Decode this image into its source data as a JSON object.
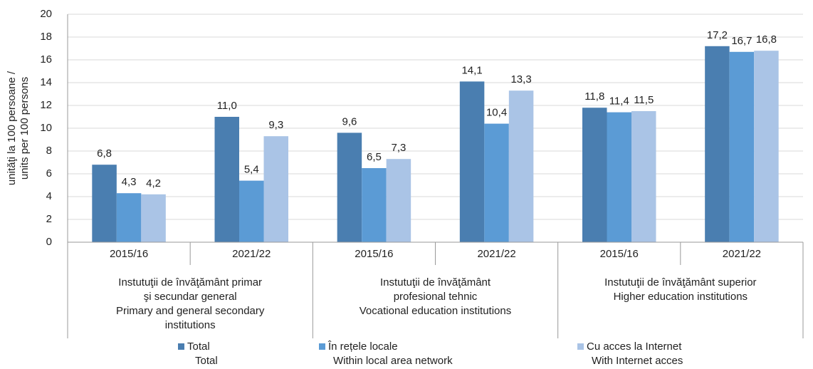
{
  "chart_data": {
    "type": "bar",
    "ylabel": [
      "unităţi la 100 persoane /",
      "units per 100 persons"
    ],
    "categories": [
      "2015/16",
      "2021/22",
      "2015/16",
      "2021/22",
      "2015/16",
      "2021/22"
    ],
    "groups": [
      {
        "lines": [
          "Instutuţii de învăţământ primar",
          "şi secundar general",
          "Primary and general secondary",
          "institutions"
        ]
      },
      {
        "lines": [
          "Instutuţii de învăţământ",
          "profesional tehnic",
          "Vocational education institutions"
        ]
      },
      {
        "lines": [
          "Instutuţii de învăţământ superior",
          "Higher education institutions"
        ]
      }
    ],
    "series": [
      {
        "name": "Total",
        "name_en": "Total",
        "color": "#4a7eb0",
        "values": [
          6.8,
          11.0,
          9.6,
          14.1,
          11.8,
          17.2
        ],
        "value_labels": [
          "6,8",
          "11,0",
          "9,6",
          "14,1",
          "11,8",
          "17,2"
        ]
      },
      {
        "name": "În rețele locale",
        "name_en": "Within local area network",
        "color": "#5b9bd5",
        "values": [
          4.3,
          5.4,
          6.5,
          10.4,
          11.4,
          16.7
        ],
        "value_labels": [
          "4,3",
          "5,4",
          "6,5",
          "10,4",
          "11,4",
          "16,7"
        ]
      },
      {
        "name": "Cu acces la Internet",
        "name_en": "With Internet acces",
        "color": "#aac4e6",
        "values": [
          4.2,
          9.3,
          7.3,
          13.3,
          11.5,
          16.8
        ],
        "value_labels": [
          "4,2",
          "9,3",
          "7,3",
          "13,3",
          "11,5",
          "16,8"
        ]
      }
    ],
    "ylim": [
      0,
      20
    ],
    "yticks": [
      0,
      2,
      4,
      6,
      8,
      10,
      12,
      14,
      16,
      18,
      20
    ],
    "grid": true
  }
}
